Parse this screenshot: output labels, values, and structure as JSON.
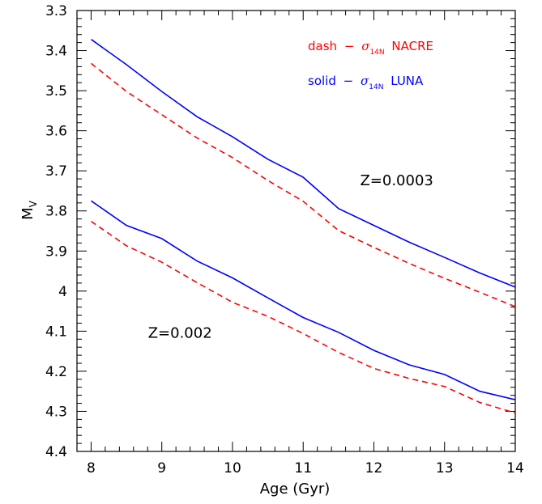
{
  "chart_data": {
    "type": "line",
    "xlabel": "Age (Gyr)",
    "ylabel": "M",
    "ylabel_sub": "V",
    "xlim": [
      7.8,
      14
    ],
    "ylim": [
      3.3,
      4.4
    ],
    "y_inverted": true,
    "x_ticks": [
      8,
      9,
      10,
      11,
      12,
      13,
      14
    ],
    "x_tick_labels": [
      "8",
      "9",
      "10",
      "11",
      "12",
      "13",
      "14"
    ],
    "y_ticks": [
      3.3,
      3.4,
      3.5,
      3.6,
      3.7,
      3.8,
      3.9,
      4.0,
      4.1,
      4.2,
      4.3,
      4.4
    ],
    "y_tick_labels": [
      "3.3",
      "3.4",
      "3.5",
      "3.6",
      "3.7",
      "3.8",
      "3.9",
      "4",
      "4.1",
      "4.2",
      "4.3",
      "4.4"
    ],
    "grid": false,
    "legend": {
      "placement": "top-right",
      "entries": [
        {
          "prefix": "dash",
          "dash": "−",
          "symbol": "σ",
          "sub": "14N",
          "suffix": "NACRE",
          "color": "#ff0000"
        },
        {
          "prefix": "solid",
          "dash": "−",
          "symbol": "σ",
          "sub": "14N",
          "suffix": "LUNA",
          "color": "#0000ff"
        }
      ]
    },
    "annotations": [
      {
        "text": "Z=0.0003",
        "x": 12.0,
        "y": 3.72
      },
      {
        "text": "Z=0.002",
        "x": 9.0,
        "y": 4.1
      }
    ],
    "x": [
      8.0,
      8.5,
      9.0,
      9.5,
      10.0,
      10.5,
      11.0,
      11.5,
      12.0,
      12.5,
      13.0,
      13.5,
      14.0
    ],
    "series": [
      {
        "group": "Z=0.0003",
        "style": "solid",
        "color": "#0000ff",
        "values": [
          3.372,
          3.435,
          3.502,
          3.565,
          3.615,
          3.671,
          3.716,
          3.794,
          3.836,
          3.878,
          3.916,
          3.955,
          3.99
        ]
      },
      {
        "group": "Z=0.0003",
        "style": "dashed",
        "color": "#ff0000",
        "values": [
          3.432,
          3.502,
          3.56,
          3.618,
          3.667,
          3.724,
          3.776,
          3.849,
          3.891,
          3.931,
          3.968,
          4.003,
          4.039
        ]
      },
      {
        "group": "Z=0.002",
        "style": "solid",
        "color": "#0000ff",
        "values": [
          3.775,
          3.836,
          3.869,
          3.925,
          3.967,
          4.017,
          4.066,
          4.103,
          4.148,
          4.184,
          4.208,
          4.25,
          4.271
        ]
      },
      {
        "group": "Z=0.002",
        "style": "dashed",
        "color": "#ff0000",
        "values": [
          3.826,
          3.887,
          3.928,
          3.979,
          4.028,
          4.063,
          4.106,
          4.153,
          4.193,
          4.218,
          4.238,
          4.278,
          4.304
        ]
      }
    ]
  }
}
